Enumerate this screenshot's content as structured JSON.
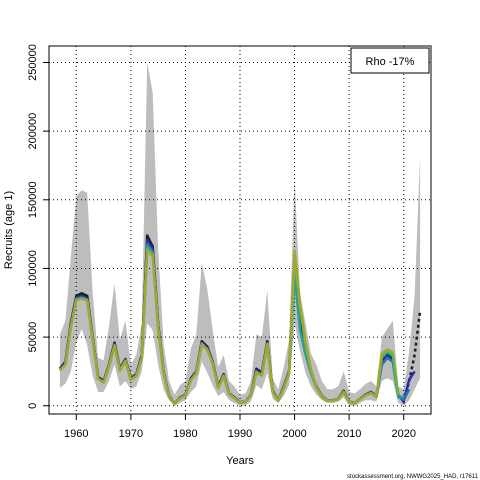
{
  "chart_data": {
    "type": "line",
    "xlabel": "Years",
    "ylabel": "Recruits (age 1)",
    "xlim": [
      1955,
      2025
    ],
    "ylim": [
      -6000,
      262000
    ],
    "xticks": [
      1960,
      1970,
      1980,
      1990,
      2000,
      2010,
      2020
    ],
    "yticks": [
      0,
      50000,
      100000,
      150000,
      200000,
      250000
    ],
    "grid": true,
    "legend": {
      "placement": "top-right",
      "text": "Rho -17%"
    },
    "footer": "stockassessment.org, NWWG2025_HAD, r17611",
    "confidence_band": {
      "x": [
        1957,
        1958,
        1959,
        1960,
        1961,
        1962,
        1963,
        1964,
        1965,
        1966,
        1967,
        1968,
        1969,
        1970,
        1971,
        1972,
        1973,
        1974,
        1975,
        1976,
        1977,
        1978,
        1979,
        1980,
        1981,
        1982,
        1983,
        1984,
        1985,
        1986,
        1987,
        1988,
        1989,
        1990,
        1991,
        1992,
        1993,
        1994,
        1995,
        1996,
        1997,
        1998,
        1999,
        2000,
        2001,
        2002,
        2003,
        2004,
        2005,
        2006,
        2007,
        2008,
        2009,
        2010,
        2011,
        2012,
        2013,
        2014,
        2015,
        2016,
        2017,
        2018,
        2019,
        2020,
        2021,
        2022,
        2023
      ],
      "upper": [
        52000,
        62000,
        108000,
        153000,
        157000,
        155000,
        82000,
        35000,
        33000,
        58000,
        89000,
        48000,
        62000,
        30000,
        37000,
        60000,
        250000,
        228000,
        115000,
        45000,
        18000,
        8000,
        15000,
        18000,
        42000,
        52000,
        104000,
        85000,
        55000,
        28000,
        37000,
        18000,
        14000,
        8000,
        9000,
        18000,
        52000,
        50000,
        84000,
        20000,
        12000,
        28000,
        48000,
        165000,
        82000,
        60000,
        38000,
        30000,
        18000,
        12000,
        12000,
        14000,
        25000,
        10000,
        9000,
        12000,
        16000,
        18000,
        14000,
        50000,
        56000,
        62000,
        14000,
        12000,
        40000,
        80000,
        182000
      ],
      "lower": [
        13000,
        16000,
        25000,
        46000,
        56000,
        44000,
        22000,
        10000,
        10000,
        18000,
        30000,
        14000,
        18000,
        12000,
        14000,
        25000,
        60000,
        55000,
        30000,
        12000,
        4000,
        0,
        2000,
        4000,
        10000,
        14000,
        32000,
        24000,
        15000,
        7000,
        10000,
        4000,
        2000,
        0,
        0,
        3000,
        15000,
        12000,
        24000,
        5000,
        2000,
        7000,
        15000,
        60000,
        40000,
        24000,
        14000,
        8000,
        4000,
        2000,
        2000,
        3000,
        6000,
        0,
        0,
        2000,
        4000,
        4000,
        3000,
        18000,
        20000,
        18000,
        2000,
        0,
        4000,
        12000,
        20000
      ]
    },
    "series": [
      {
        "color": "#1e1e1e",
        "x": [
          1957,
          1958,
          1959,
          1960,
          1961,
          1962,
          1963,
          1964,
          1965,
          1966,
          1967,
          1968,
          1969,
          1970,
          1971,
          1972,
          1973,
          1974,
          1975,
          1976,
          1977,
          1978,
          1979,
          1980,
          1981,
          1982,
          1983,
          1984,
          1985,
          1986,
          1987,
          1988,
          1989,
          1990,
          1991,
          1992,
          1993,
          1994,
          1995,
          1996,
          1997,
          1998,
          1999,
          2000,
          2001,
          2002,
          2003,
          2004,
          2005,
          2006,
          2007,
          2008,
          2009,
          2010,
          2011,
          2012,
          2013,
          2014,
          2015,
          2016,
          2017,
          2018,
          2019,
          2020,
          2021,
          2022,
          2023
        ],
        "y": [
          27000,
          32000,
          60000,
          80000,
          82000,
          80000,
          50000,
          21000,
          18000,
          30000,
          46000,
          27000,
          34000,
          20000,
          23000,
          37000,
          124000,
          116000,
          60000,
          25000,
          7000,
          1500,
          6000,
          8000,
          20000,
          25000,
          47000,
          43000,
          32000,
          14000,
          23000,
          9000,
          6000,
          2500,
          3000,
          8000,
          27000,
          24000,
          47000,
          11000,
          4000,
          14000,
          25000,
          110000,
          60000,
          40000,
          25000,
          14000,
          7000,
          4000,
          4000,
          5000,
          11000,
          3000,
          2000,
          5000,
          8000,
          10000,
          7000,
          33000,
          38000,
          34000,
          8000,
          3000,
          18000,
          37000,
          69000
        ],
        "dashed_from": 2020
      },
      {
        "color": "#2a2aa8",
        "x": [
          1957,
          1958,
          1959,
          1960,
          1961,
          1962,
          1963,
          1964,
          1965,
          1966,
          1967,
          1968,
          1969,
          1970,
          1971,
          1972,
          1973,
          1974,
          1975,
          1976,
          1977,
          1978,
          1979,
          1980,
          1981,
          1982,
          1983,
          1984,
          1985,
          1986,
          1987,
          1988,
          1989,
          1990,
          1991,
          1992,
          1993,
          1994,
          1995,
          1996,
          1997,
          1998,
          1999,
          2000,
          2001,
          2002,
          2003,
          2004,
          2005,
          2006,
          2007,
          2008,
          2009,
          2010,
          2011,
          2012,
          2013,
          2014,
          2015,
          2016,
          2017,
          2018,
          2019,
          2020,
          2021,
          2022
        ],
        "y": [
          26500,
          31000,
          59000,
          79000,
          80000,
          78000,
          49000,
          20500,
          17500,
          29500,
          45000,
          26500,
          33500,
          19500,
          22500,
          36000,
          121000,
          114000,
          59000,
          24500,
          6800,
          1400,
          5800,
          7800,
          19500,
          24500,
          46000,
          42000,
          31500,
          13500,
          22500,
          8800,
          5800,
          2400,
          2900,
          7800,
          26000,
          23000,
          46000,
          10500,
          3800,
          13500,
          24500,
          105000,
          58000,
          39000,
          24500,
          13500,
          6800,
          3900,
          3900,
          4900,
          10500,
          2900,
          1900,
          4800,
          7800,
          9800,
          6800,
          31000,
          36000,
          33000,
          7500,
          3500,
          19000,
          25000
        ]
      },
      {
        "color": "#2f6fb0",
        "x": [
          1957,
          1958,
          1959,
          1960,
          1961,
          1962,
          1963,
          1964,
          1965,
          1966,
          1967,
          1968,
          1969,
          1970,
          1971,
          1972,
          1973,
          1974,
          1975,
          1976,
          1977,
          1978,
          1979,
          1980,
          1981,
          1982,
          1983,
          1984,
          1985,
          1986,
          1987,
          1988,
          1989,
          1990,
          1991,
          1992,
          1993,
          1994,
          1995,
          1996,
          1997,
          1998,
          1999,
          2000,
          2001,
          2002,
          2003,
          2004,
          2005,
          2006,
          2007,
          2008,
          2009,
          2010,
          2011,
          2012,
          2013,
          2014,
          2015,
          2016,
          2017,
          2018,
          2019,
          2020,
          2021
        ],
        "y": [
          26000,
          30500,
          58000,
          78000,
          79000,
          77500,
          48500,
          20000,
          17000,
          29000,
          44500,
          26000,
          33000,
          19000,
          22000,
          35500,
          118000,
          112000,
          58000,
          24000,
          6600,
          1300,
          5600,
          7600,
          19000,
          24000,
          45500,
          41500,
          31000,
          13000,
          22000,
          8600,
          5600,
          2300,
          2800,
          7600,
          25000,
          22500,
          45500,
          10200,
          3700,
          13000,
          24000,
          100000,
          56000,
          38000,
          24000,
          13000,
          6600,
          3800,
          3800,
          4800,
          10200,
          2800,
          1800,
          4700,
          7600,
          9500,
          6600,
          30000,
          35000,
          32000,
          6500,
          4500,
          12000
        ]
      },
      {
        "color": "#22a39a",
        "x": [
          1957,
          1958,
          1959,
          1960,
          1961,
          1962,
          1963,
          1964,
          1965,
          1966,
          1967,
          1968,
          1969,
          1970,
          1971,
          1972,
          1973,
          1974,
          1975,
          1976,
          1977,
          1978,
          1979,
          1980,
          1981,
          1982,
          1983,
          1984,
          1985,
          1986,
          1987,
          1988,
          1989,
          1990,
          1991,
          1992,
          1993,
          1994,
          1995,
          1996,
          1997,
          1998,
          1999,
          2000,
          2001,
          2002,
          2003,
          2004,
          2005,
          2006,
          2007,
          2008,
          2009,
          2010,
          2011,
          2012,
          2013,
          2014,
          2015,
          2016,
          2017,
          2018,
          2019,
          2020
        ],
        "y": [
          26000,
          30000,
          57500,
          77500,
          78500,
          77000,
          48000,
          19800,
          16900,
          28800,
          44000,
          25800,
          32800,
          18900,
          21900,
          35000,
          116000,
          111000,
          57500,
          23800,
          6500,
          1300,
          5500,
          7500,
          18800,
          23800,
          45000,
          41000,
          30800,
          12900,
          21800,
          8500,
          5500,
          2300,
          2800,
          7500,
          24500,
          22000,
          45000,
          10000,
          3600,
          12800,
          23800,
          96000,
          55000,
          37500,
          23800,
          12900,
          6500,
          3700,
          3700,
          4700,
          10000,
          2700,
          1800,
          4600,
          7500,
          9300,
          6500,
          35000,
          39000,
          36000,
          7000,
          6000
        ]
      },
      {
        "color": "#6cb43e",
        "x": [
          1957,
          1958,
          1959,
          1960,
          1961,
          1962,
          1963,
          1964,
          1965,
          1966,
          1967,
          1968,
          1969,
          1970,
          1971,
          1972,
          1973,
          1974,
          1975,
          1976,
          1977,
          1978,
          1979,
          1980,
          1981,
          1982,
          1983,
          1984,
          1985,
          1986,
          1987,
          1988,
          1989,
          1990,
          1991,
          1992,
          1993,
          1994,
          1995,
          1996,
          1997,
          1998,
          1999,
          2000,
          2001,
          2002,
          2003,
          2004,
          2005,
          2006,
          2007,
          2008,
          2009,
          2010,
          2011,
          2012,
          2013,
          2014,
          2015,
          2016,
          2017,
          2018,
          2019
        ],
        "y": [
          26000,
          30000,
          57000,
          77000,
          78000,
          76500,
          47800,
          19700,
          16800,
          28700,
          43800,
          25700,
          32700,
          18800,
          21800,
          34800,
          114000,
          110000,
          57000,
          23700,
          6400,
          1300,
          5500,
          7500,
          18700,
          23700,
          44800,
          40800,
          30700,
          12800,
          21700,
          8500,
          5500,
          2300,
          2800,
          7500,
          24300,
          21800,
          44800,
          9900,
          3600,
          12700,
          23700,
          108000,
          72000,
          45000,
          26000,
          13000,
          6500,
          3700,
          3700,
          4700,
          10000,
          2700,
          1800,
          4600,
          7400,
          9200,
          6400,
          37000,
          40000,
          38000,
          8000
        ]
      },
      {
        "color": "#a0a830",
        "x": [
          1957,
          1958,
          1959,
          1960,
          1961,
          1962,
          1963,
          1964,
          1965,
          1966,
          1967,
          1968,
          1969,
          1970,
          1971,
          1972,
          1973,
          1974,
          1975,
          1976,
          1977,
          1978,
          1979,
          1980,
          1981,
          1982,
          1983,
          1984,
          1985,
          1986,
          1987,
          1988,
          1989,
          1990,
          1991,
          1992,
          1993,
          1994,
          1995,
          1996,
          1997,
          1998,
          1999,
          2000,
          2001,
          2002,
          2003,
          2004,
          2005,
          2006,
          2007,
          2008,
          2009,
          2010,
          2011,
          2012,
          2013,
          2014,
          2015,
          2016,
          2017,
          2018
        ],
        "y": [
          26000,
          30000,
          57000,
          77000,
          78000,
          76500,
          47800,
          19700,
          16800,
          28700,
          43800,
          25700,
          32700,
          18800,
          21800,
          34800,
          113000,
          109000,
          57000,
          23700,
          6400,
          1300,
          5500,
          7500,
          18700,
          23700,
          44800,
          40800,
          30700,
          12800,
          21700,
          8500,
          5500,
          2300,
          2800,
          7500,
          24300,
          21800,
          44800,
          9900,
          3600,
          12700,
          23700,
          113000,
          75000,
          46000,
          27000,
          13500,
          6700,
          3800,
          3800,
          4800,
          10200,
          2800,
          1900,
          4700,
          7500,
          9400,
          6600,
          38000,
          41000,
          39000
        ]
      }
    ]
  }
}
